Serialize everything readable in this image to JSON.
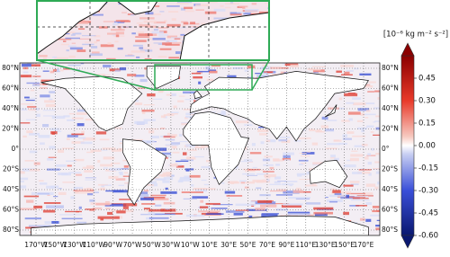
{
  "map": {
    "lat_labels": [
      "80°N",
      "60°N",
      "40°N",
      "20°N",
      "0°",
      "20°S",
      "40°S",
      "60°S",
      "80°S"
    ],
    "lon_labels": [
      "170°W",
      "150°W",
      "130°W",
      "110°W",
      "90°W",
      "70°W",
      "50°W",
      "30°W",
      "10°W",
      "10°E",
      "30°E",
      "50°E",
      "70°E",
      "90°E",
      "110°E",
      "130°E",
      "150°E",
      "170°E"
    ]
  },
  "colorbar": {
    "label": "[10⁻⁶ kg m⁻² s⁻²]",
    "lim": [
      -0.6,
      0.6
    ],
    "ticks": [
      {
        "value": 0.45,
        "label": "0.45"
      },
      {
        "value": 0.3,
        "label": "0.30"
      },
      {
        "value": 0.15,
        "label": "0.15"
      },
      {
        "value": 0,
        "label": "0.00"
      },
      {
        "value": -0.15,
        "label": "-0.15"
      },
      {
        "value": -0.3,
        "label": "-0.30"
      },
      {
        "value": -0.45,
        "label": "-0.45"
      },
      {
        "value": -0.6,
        "label": "-0.60"
      }
    ]
  }
}
